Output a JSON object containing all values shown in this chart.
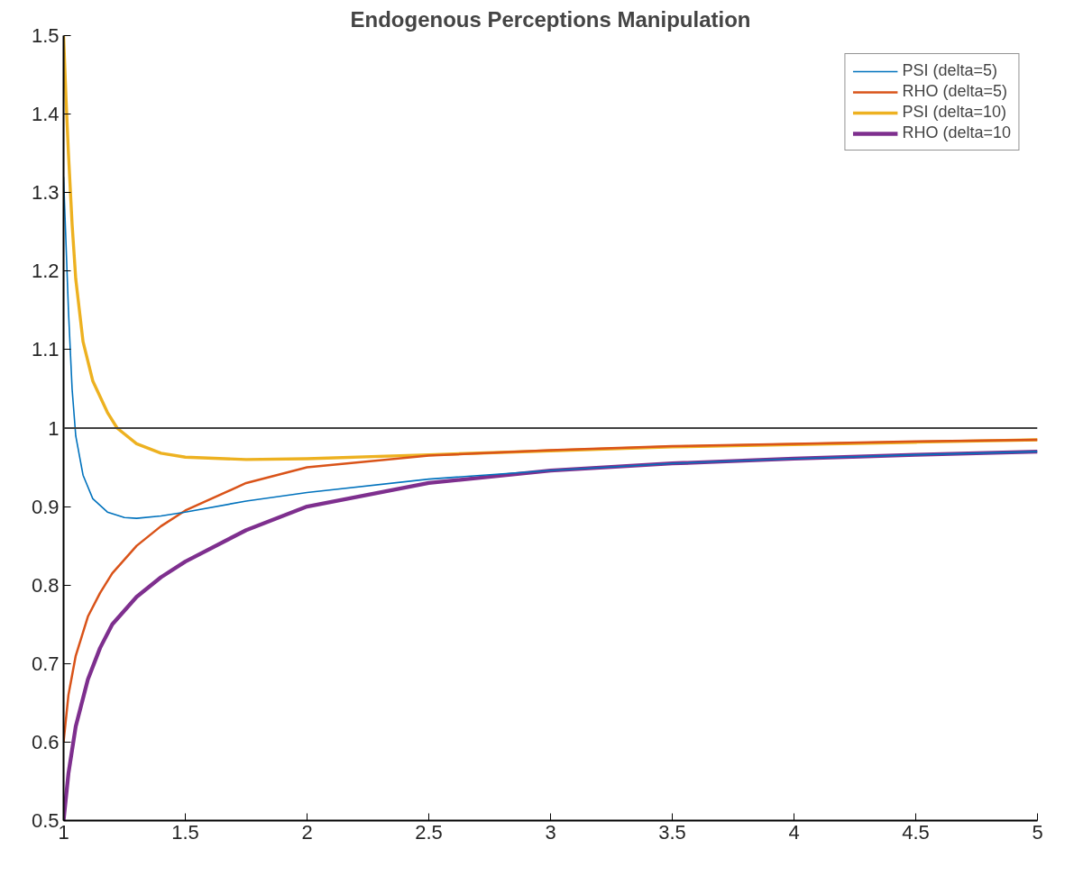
{
  "chart_data": {
    "type": "line",
    "title": "Endogenous Perceptions Manipulation",
    "xlim": [
      1,
      5
    ],
    "ylim": [
      0.5,
      1.5
    ],
    "xticks": [
      1,
      1.5,
      2,
      2.5,
      3,
      3.5,
      4,
      4.5,
      5
    ],
    "yticks": [
      0.5,
      0.6,
      0.7,
      0.8,
      0.9,
      1,
      1.1,
      1.2,
      1.3,
      1.4,
      1.5
    ],
    "grid": false,
    "legend": "top right",
    "marker": "none",
    "line_style": "solid",
    "ref_lines": [
      {
        "axis": "y",
        "value": 1,
        "color": "#404040"
      }
    ],
    "series": [
      {
        "name": "PSI (delta=5)",
        "color": "#0072bd",
        "x": [
          1,
          1.02,
          1.035,
          1.05,
          1.08,
          1.12,
          1.18,
          1.25,
          1.3,
          1.4,
          1.5,
          1.75,
          2,
          2.5,
          3,
          3.5,
          4,
          4.5,
          5
        ],
        "values": [
          1.32,
          1.15,
          1.05,
          0.99,
          0.94,
          0.91,
          0.893,
          0.886,
          0.885,
          0.888,
          0.893,
          0.907,
          0.918,
          0.935,
          0.946,
          0.955,
          0.961,
          0.966,
          0.97
        ]
      },
      {
        "name": "RHO (delta=5)",
        "color": "#d95319",
        "x": [
          1,
          1.02,
          1.05,
          1.1,
          1.15,
          1.2,
          1.3,
          1.4,
          1.5,
          1.75,
          2,
          2.5,
          3,
          3.5,
          4,
          4.5,
          5
        ],
        "values": [
          0.6,
          0.66,
          0.71,
          0.76,
          0.79,
          0.815,
          0.85,
          0.875,
          0.895,
          0.93,
          0.95,
          0.965,
          0.972,
          0.977,
          0.98,
          0.983,
          0.985
        ]
      },
      {
        "name": "PSI (delta=10)",
        "color": "#edb120",
        "x": [
          1,
          1.01,
          1.02,
          1.035,
          1.05,
          1.08,
          1.12,
          1.18,
          1.22,
          1.3,
          1.4,
          1.5,
          1.75,
          2,
          2.5,
          3,
          3.5,
          4,
          4.5,
          5
        ],
        "values": [
          1.5,
          1.42,
          1.35,
          1.26,
          1.19,
          1.11,
          1.06,
          1.02,
          1.0,
          0.98,
          0.968,
          0.963,
          0.96,
          0.961,
          0.966,
          0.971,
          0.976,
          0.979,
          0.982,
          0.985
        ]
      },
      {
        "name": "RHO (delta=10",
        "color": "#7e2f8e",
        "x": [
          1,
          1.02,
          1.05,
          1.1,
          1.15,
          1.2,
          1.3,
          1.4,
          1.5,
          1.75,
          2,
          2.5,
          3,
          3.5,
          4,
          4.5,
          5
        ],
        "values": [
          0.5,
          0.56,
          0.62,
          0.68,
          0.72,
          0.75,
          0.785,
          0.81,
          0.83,
          0.87,
          0.9,
          0.93,
          0.946,
          0.955,
          0.961,
          0.966,
          0.97
        ]
      }
    ]
  }
}
